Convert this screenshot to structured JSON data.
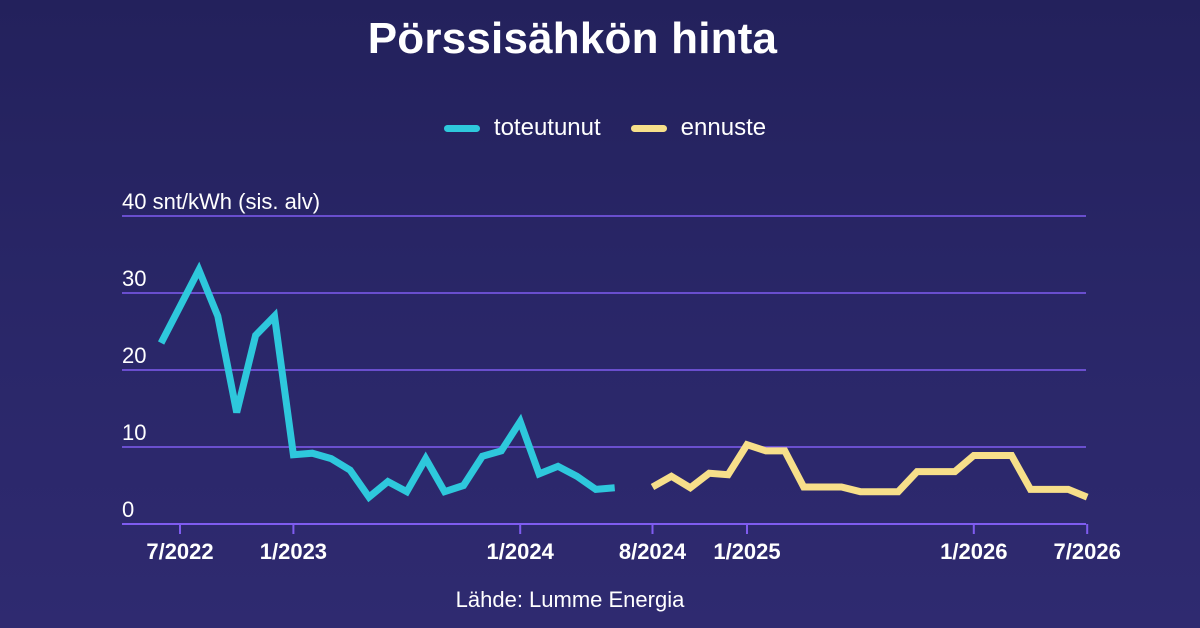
{
  "title": "Pörssisähkön hinta",
  "source": "Lähde: Lumme Energia",
  "colors": {
    "actual": "#2ec8dc",
    "forecast": "#f7df8a",
    "grid": "#7f5cf0",
    "text": "#ffffff"
  },
  "chart_data": {
    "type": "line",
    "title": "Pörssisähkön hinta",
    "ylabel": "snt/kWh (sis. alv)",
    "ylim": [
      0,
      40
    ],
    "grid": true,
    "legend_position": "top-center",
    "y_ticks": [
      {
        "value": 0,
        "label": "0"
      },
      {
        "value": 10,
        "label": "10"
      },
      {
        "value": 20,
        "label": "20"
      },
      {
        "value": 30,
        "label": "30"
      },
      {
        "value": 40,
        "label": "40 snt/kWh (sis. alv)"
      }
    ],
    "x_ticks": [
      {
        "date": "2022-07",
        "label": "7/2022"
      },
      {
        "date": "2023-01",
        "label": "1/2023"
      },
      {
        "date": "2024-01",
        "label": "1/2024"
      },
      {
        "date": "2024-08",
        "label": "8/2024"
      },
      {
        "date": "2025-01",
        "label": "1/2025"
      },
      {
        "date": "2026-01",
        "label": "1/2026"
      },
      {
        "date": "2026-07",
        "label": "7/2026"
      }
    ],
    "series": [
      {
        "name": "toteutunut",
        "points": [
          [
            "2022-06",
            23.5
          ],
          [
            "2022-08",
            33.0
          ],
          [
            "2022-09",
            27.0
          ],
          [
            "2022-10",
            14.5
          ],
          [
            "2022-11",
            24.5
          ],
          [
            "2022-12",
            27.0
          ],
          [
            "2023-01",
            9.0
          ],
          [
            "2023-02",
            9.2
          ],
          [
            "2023-03",
            8.5
          ],
          [
            "2023-04",
            7.0
          ],
          [
            "2023-05",
            3.5
          ],
          [
            "2023-06",
            5.5
          ],
          [
            "2023-07",
            4.2
          ],
          [
            "2023-08",
            8.5
          ],
          [
            "2023-09",
            4.2
          ],
          [
            "2023-10",
            5.0
          ],
          [
            "2023-11",
            8.8
          ],
          [
            "2023-12",
            9.5
          ],
          [
            "2024-01",
            13.3
          ],
          [
            "2024-02",
            6.5
          ],
          [
            "2024-03",
            7.5
          ],
          [
            "2024-04",
            6.2
          ],
          [
            "2024-05",
            4.5
          ],
          [
            "2024-06",
            4.7
          ]
        ]
      },
      {
        "name": "ennuste",
        "points": [
          [
            "2024-08",
            4.8
          ],
          [
            "2024-09",
            6.2
          ],
          [
            "2024-10",
            4.7
          ],
          [
            "2024-11",
            6.6
          ],
          [
            "2024-12",
            6.4
          ],
          [
            "2025-01",
            10.3
          ],
          [
            "2025-02",
            9.5
          ],
          [
            "2025-03",
            9.5
          ],
          [
            "2025-04",
            4.8
          ],
          [
            "2025-05",
            4.8
          ],
          [
            "2025-06",
            4.8
          ],
          [
            "2025-07",
            4.2
          ],
          [
            "2025-08",
            4.2
          ],
          [
            "2025-09",
            4.2
          ],
          [
            "2025-10",
            6.8
          ],
          [
            "2025-11",
            6.8
          ],
          [
            "2025-12",
            6.8
          ],
          [
            "2026-01",
            8.9
          ],
          [
            "2026-02",
            8.9
          ],
          [
            "2026-03",
            8.9
          ],
          [
            "2026-04",
            4.5
          ],
          [
            "2026-05",
            4.5
          ],
          [
            "2026-06",
            4.5
          ],
          [
            "2026-07",
            3.5
          ]
        ]
      }
    ]
  }
}
